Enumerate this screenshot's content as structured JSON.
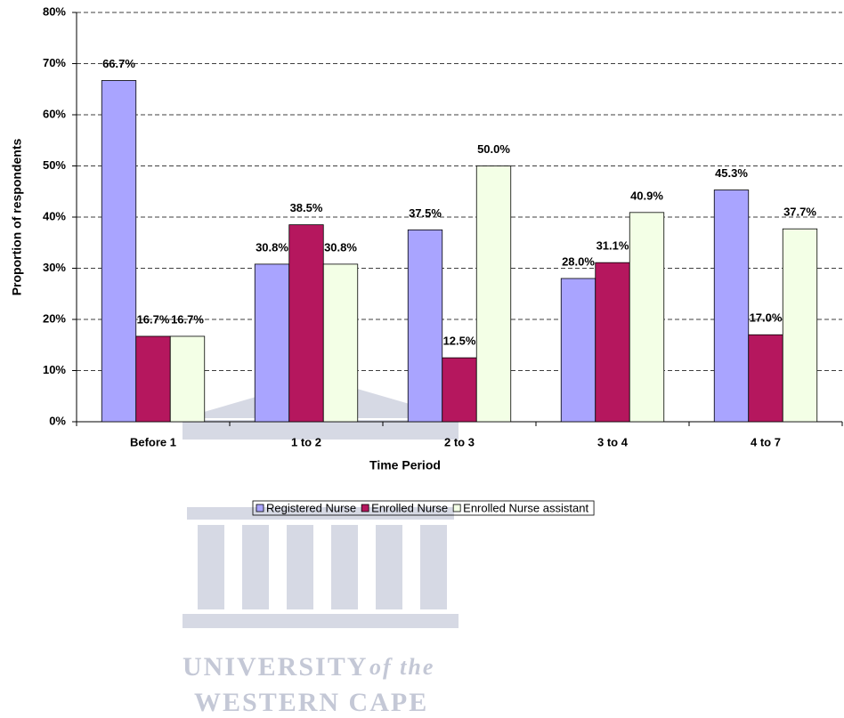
{
  "chart_data": {
    "type": "bar",
    "x_label": "Time Period",
    "y_label": "Proportion of respondents",
    "categories": [
      "Before 1",
      "1 to 2",
      "2 to 3",
      "3 to 4",
      "4 to 7"
    ],
    "series": [
      {
        "name": "Registered Nurse",
        "color": "#a9a4ff",
        "values": [
          66.7,
          30.8,
          37.5,
          28.0,
          45.3
        ],
        "value_labels": [
          "66.7%",
          "30.8%",
          "37.5%",
          "28.0%",
          "45.3%"
        ]
      },
      {
        "name": "Enrolled Nurse",
        "color": "#b5175e",
        "values": [
          16.7,
          38.5,
          12.5,
          31.1,
          17.0
        ],
        "value_labels": [
          "16.7%",
          "38.5%",
          "12.5%",
          "31.1%",
          "17.0%"
        ]
      },
      {
        "name": "Enrolled Nurse assistant",
        "color": "#f3ffe6",
        "values": [
          16.7,
          30.8,
          50.0,
          40.9,
          37.7
        ],
        "value_labels": [
          "16.7%",
          "30.8%",
          "50.0%",
          "40.9%",
          "37.7%"
        ]
      }
    ],
    "ylim": [
      0,
      80
    ],
    "yticks": [
      {
        "value": 0,
        "label": "0%"
      },
      {
        "value": 10,
        "label": "10%"
      },
      {
        "value": 20,
        "label": "20%"
      },
      {
        "value": 30,
        "label": "30%"
      },
      {
        "value": 40,
        "label": "40%"
      },
      {
        "value": 50,
        "label": "50%"
      },
      {
        "value": 60,
        "label": "60%"
      },
      {
        "value": 70,
        "label": "70%"
      },
      {
        "value": 80,
        "label": "80%"
      }
    ],
    "grid": true,
    "legend": "bottom"
  },
  "watermark": [
    "UNIVERSITY",
    "of the",
    "WESTERN CAPE"
  ]
}
